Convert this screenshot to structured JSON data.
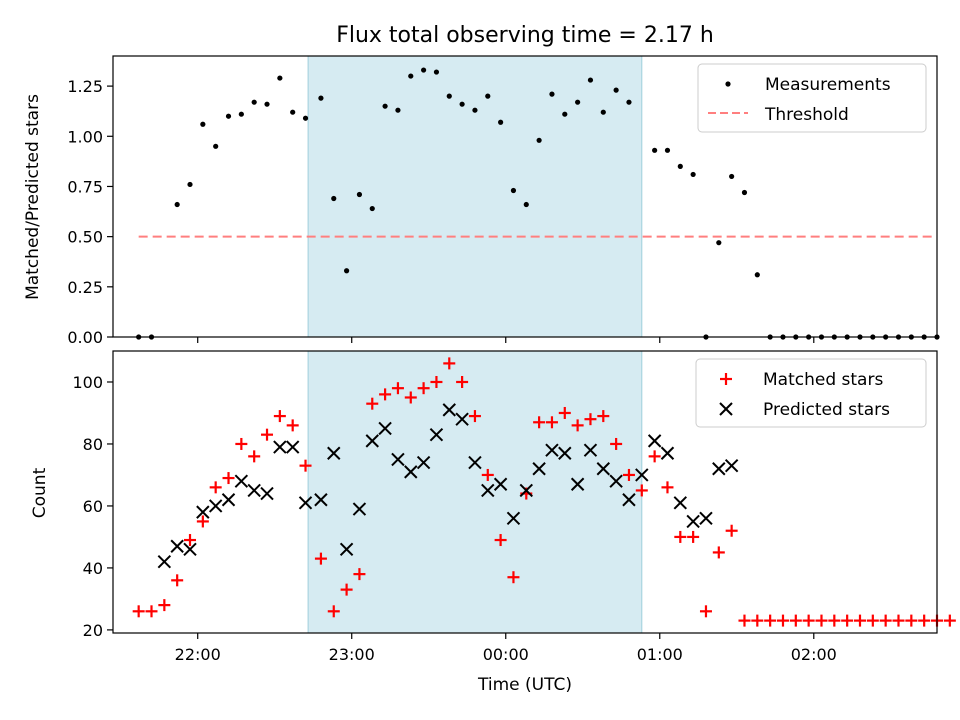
{
  "chart_data": [
    {
      "type": "scatter",
      "title": "Flux total observing time = 2.17 h",
      "xlabel": "",
      "ylabel": "Matched/Predicted stars",
      "xlim": [
        "21:27",
        "02:48"
      ],
      "ylim": [
        0,
        1.4
      ],
      "yticks": [
        0.0,
        0.25,
        0.5,
        0.75,
        1.0,
        1.25
      ],
      "ytick_labels": [
        "0.00",
        "0.25",
        "0.50",
        "0.75",
        "1.00",
        "1.25"
      ],
      "grid": false,
      "legend": "top-right",
      "highlight_span": {
        "start": "22:43",
        "end": "00:53",
        "color": "#add8e6"
      },
      "series": [
        {
          "name": "Measurements",
          "marker": "dot",
          "color": "#000000",
          "x": [
            "21:37",
            "21:42",
            "21:52",
            "21:57",
            "22:02",
            "22:07",
            "22:12",
            "22:17",
            "22:22",
            "22:27",
            "22:32",
            "22:37",
            "22:42",
            "22:48",
            "22:53",
            "22:58",
            "23:03",
            "23:08",
            "23:13",
            "23:18",
            "23:23",
            "23:28",
            "23:33",
            "23:38",
            "23:43",
            "23:48",
            "23:53",
            "23:58",
            "00:03",
            "00:08",
            "00:13",
            "00:18",
            "00:23",
            "00:28",
            "00:33",
            "00:38",
            "00:43",
            "00:48",
            "00:58",
            "01:03",
            "01:08",
            "01:13",
            "01:18",
            "01:23",
            "01:28",
            "01:33",
            "01:38",
            "01:43",
            "01:48",
            "01:53",
            "01:58",
            "02:03",
            "02:08",
            "02:13",
            "02:18",
            "02:23",
            "02:28",
            "02:33",
            "02:38",
            "02:43",
            "02:48"
          ],
          "y": [
            0.0,
            0.0,
            0.66,
            0.76,
            1.06,
            0.95,
            1.1,
            1.11,
            1.17,
            1.16,
            1.29,
            1.12,
            1.09,
            1.19,
            0.69,
            0.33,
            0.71,
            0.64,
            1.15,
            1.13,
            1.3,
            1.33,
            1.32,
            1.2,
            1.16,
            1.13,
            1.2,
            1.07,
            0.73,
            0.66,
            0.98,
            1.21,
            1.11,
            1.17,
            1.28,
            1.12,
            1.23,
            1.17,
            0.93,
            0.93,
            0.85,
            0.81,
            0.0,
            0.47,
            0.8,
            0.72,
            0.31,
            0.0,
            0.0,
            0.0,
            0.0,
            0.0,
            0.0,
            0.0,
            0.0,
            0.0,
            0.0,
            0.0,
            0.0,
            0.0,
            0.0
          ]
        },
        {
          "name": "Threshold",
          "line": "dashed",
          "color": "#ff7f7f",
          "x": [
            "21:37",
            "02:48"
          ],
          "y": [
            0.5,
            0.5
          ]
        }
      ]
    },
    {
      "type": "scatter",
      "title": "",
      "xlabel": "Time (UTC)",
      "ylabel": "Count",
      "xlim": [
        "21:27",
        "02:48"
      ],
      "ylim": [
        19,
        110
      ],
      "yticks": [
        20,
        40,
        60,
        80,
        100
      ],
      "ytick_labels": [
        "20",
        "40",
        "60",
        "80",
        "100"
      ],
      "xticks": [
        "22:00",
        "23:00",
        "00:00",
        "01:00",
        "02:00"
      ],
      "grid": false,
      "legend": "top-right",
      "highlight_span": {
        "start": "22:43",
        "end": "00:53",
        "color": "#add8e6"
      },
      "series": [
        {
          "name": "Matched stars",
          "marker": "plus",
          "color": "#ff0000",
          "x": [
            "21:37",
            "21:42",
            "21:47",
            "21:52",
            "21:57",
            "22:02",
            "22:07",
            "22:12",
            "22:17",
            "22:22",
            "22:27",
            "22:32",
            "22:37",
            "22:42",
            "22:48",
            "22:53",
            "22:58",
            "23:03",
            "23:08",
            "23:13",
            "23:18",
            "23:23",
            "23:28",
            "23:33",
            "23:38",
            "23:43",
            "23:48",
            "23:53",
            "23:58",
            "00:03",
            "00:08",
            "00:13",
            "00:18",
            "00:23",
            "00:28",
            "00:33",
            "00:38",
            "00:43",
            "00:48",
            "00:53",
            "00:58",
            "01:03",
            "01:08",
            "01:13",
            "01:18",
            "01:23",
            "01:28",
            "01:33",
            "01:38",
            "01:43",
            "01:48",
            "01:53",
            "01:58",
            "02:03",
            "02:08",
            "02:13",
            "02:18",
            "02:23",
            "02:28",
            "02:33",
            "02:38",
            "02:43",
            "02:48",
            "02:53"
          ],
          "y": [
            26,
            26,
            28,
            36,
            49,
            55,
            66,
            69,
            80,
            76,
            83,
            89,
            86,
            73,
            43,
            26,
            33,
            38,
            93,
            96,
            98,
            95,
            98,
            100,
            106,
            100,
            89,
            70,
            49,
            37,
            64,
            87,
            87,
            90,
            86,
            88,
            89,
            80,
            70,
            65,
            76,
            66,
            50,
            50,
            26,
            45,
            52,
            23,
            23,
            23,
            23,
            23,
            23,
            23,
            23,
            23,
            23,
            23,
            23,
            23,
            23,
            23,
            23,
            23
          ]
        },
        {
          "name": "Predicted stars",
          "marker": "x",
          "color": "#000000",
          "x": [
            "21:47",
            "21:52",
            "21:57",
            "22:02",
            "22:07",
            "22:12",
            "22:17",
            "22:22",
            "22:27",
            "22:32",
            "22:37",
            "22:42",
            "22:48",
            "22:53",
            "22:58",
            "23:03",
            "23:08",
            "23:13",
            "23:18",
            "23:23",
            "23:28",
            "23:33",
            "23:38",
            "23:43",
            "23:48",
            "23:53",
            "23:58",
            "00:03",
            "00:08",
            "00:13",
            "00:18",
            "00:23",
            "00:28",
            "00:33",
            "00:38",
            "00:43",
            "00:48",
            "00:53",
            "00:58",
            "01:03",
            "01:08",
            "01:13",
            "01:18",
            "01:23",
            "01:28"
          ],
          "y": [
            42,
            47,
            46,
            58,
            60,
            62,
            68,
            65,
            64,
            79,
            79,
            61,
            62,
            77,
            46,
            59,
            81,
            85,
            75,
            71,
            74,
            83,
            91,
            88,
            74,
            65,
            67,
            56,
            65,
            72,
            78,
            77,
            67,
            78,
            72,
            68,
            62,
            70,
            81,
            77,
            61,
            55,
            56,
            72,
            73
          ]
        }
      ]
    }
  ]
}
